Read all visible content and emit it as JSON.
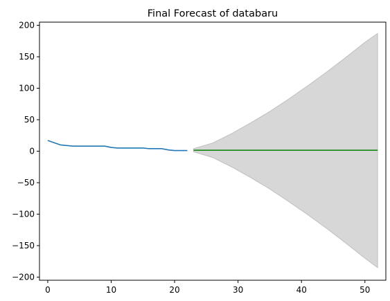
{
  "chart_data": {
    "type": "line",
    "title": "Final Forecast of databaru",
    "xlabel": "",
    "ylabel": "",
    "xlim": [
      -1.3,
      53.3
    ],
    "ylim": [
      -205,
      205
    ],
    "xticks": [
      0,
      10,
      20,
      30,
      40,
      50
    ],
    "yticks": [
      -200,
      -150,
      -100,
      -50,
      0,
      50,
      100,
      150,
      200
    ],
    "grid": false,
    "legend": "none",
    "series": [
      {
        "kind": "line",
        "color": "#1f77b4",
        "x": [
          0,
          1,
          2,
          3,
          4,
          5,
          6,
          7,
          8,
          9,
          10,
          11,
          12,
          13,
          14,
          15,
          16,
          17,
          18,
          19,
          20,
          21,
          22
        ],
        "y": [
          17,
          13.5,
          10,
          9,
          8,
          8,
          8,
          8,
          8,
          8,
          6,
          5,
          5,
          5,
          5,
          5,
          4,
          4,
          4,
          2,
          1,
          1,
          1
        ]
      },
      {
        "kind": "line",
        "color": "#008000",
        "x": [
          23,
          24,
          25,
          26,
          27,
          28,
          29,
          30,
          31,
          32,
          33,
          34,
          35,
          36,
          37,
          38,
          39,
          40,
          41,
          42,
          43,
          44,
          45,
          46,
          47,
          48,
          49,
          50,
          51,
          52
        ],
        "y": [
          1.5,
          1.5,
          1.5,
          1.5,
          1.5,
          1.5,
          1.5,
          1.5,
          1.5,
          1.5,
          1.5,
          1.5,
          1.5,
          1.5,
          1.5,
          1.5,
          1.5,
          1.5,
          1.5,
          1.5,
          1.5,
          1.5,
          1.5,
          1.5,
          1.5,
          1.5,
          1.5,
          1.5,
          1.5,
          1.5
        ]
      },
      {
        "kind": "band",
        "color": "#d7d7d7",
        "edge_color": "#bfbfbf",
        "x": [
          23,
          26,
          29,
          32,
          35,
          38,
          41,
          44,
          47,
          50,
          52
        ],
        "lower": [
          -1,
          -10,
          -25,
          -42,
          -60,
          -80,
          -101,
          -123,
          -146,
          -170,
          -185
        ],
        "upper": [
          4,
          13,
          28,
          45,
          63,
          83,
          104,
          126,
          149,
          173,
          187
        ]
      }
    ]
  }
}
